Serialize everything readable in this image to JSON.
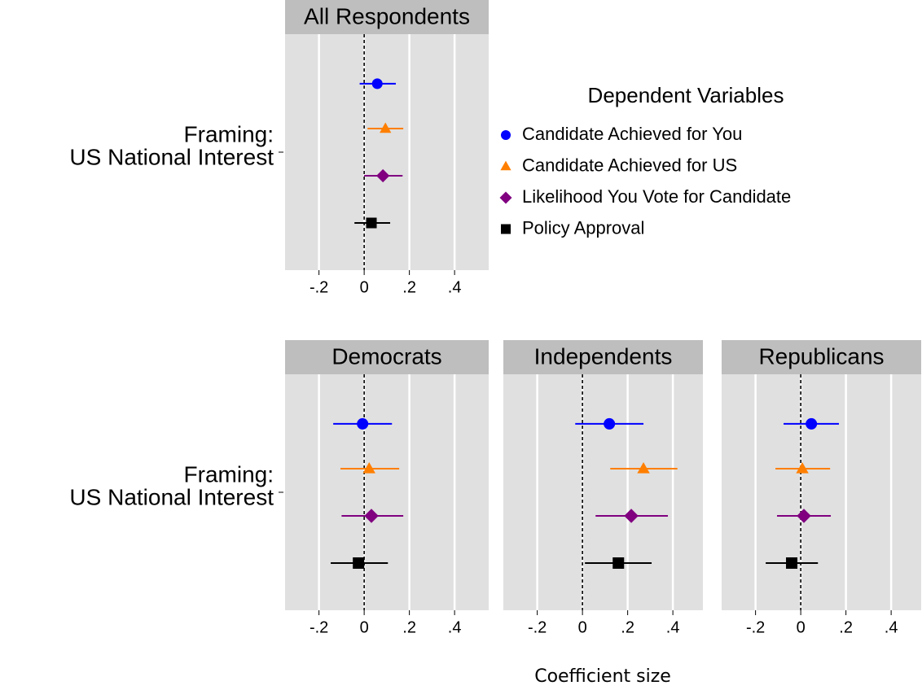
{
  "chart_data": [
    {
      "type": "coefplot",
      "title": "All Respondents",
      "ylabel": [
        "Framing:",
        "US National Interest"
      ],
      "xlim": [
        -0.35,
        0.55
      ],
      "xticks": [
        {
          "value": -0.2,
          "label": "-.2"
        },
        0,
        {
          "value": 0.2,
          "label": ".2"
        },
        {
          "value": 0.4,
          "label": ".4"
        }
      ],
      "xline": 0,
      "grid": true,
      "series": [
        {
          "name": "Candidate Achieved for You",
          "color": "#0000ff",
          "marker": "circle",
          "values": [
            0.058
          ],
          "ci_low": [
            -0.02
          ],
          "ci_high": [
            0.14
          ]
        },
        {
          "name": "Candidate Achieved for US",
          "color": "#ff7f00",
          "marker": "triangle",
          "values": [
            0.094
          ],
          "ci_low": [
            0.015
          ],
          "ci_high": [
            0.173
          ]
        },
        {
          "name": "Likelihood You Vote for Candidate",
          "color": "#800080",
          "marker": "diamond",
          "values": [
            0.083
          ],
          "ci_low": [
            0.0
          ],
          "ci_high": [
            0.17
          ]
        },
        {
          "name": "Policy Approval",
          "color": "#000000",
          "marker": "square",
          "values": [
            0.032
          ],
          "ci_low": [
            -0.043
          ],
          "ci_high": [
            0.115
          ]
        }
      ],
      "legend_title": "Dependent Variables"
    },
    {
      "type": "coefplot",
      "title": "Democrats",
      "ylabel": [
        "Framing:",
        "US National Interest"
      ],
      "xlim": [
        -0.35,
        0.55
      ],
      "xticks": [
        {
          "value": -0.2,
          "label": "-.2"
        },
        0,
        {
          "value": 0.2,
          "label": ".2"
        },
        {
          "value": 0.4,
          "label": ".4"
        }
      ],
      "xline": 0,
      "grid": true,
      "series": [
        {
          "name": "Candidate Achieved for You",
          "color": "#0000ff",
          "marker": "circle",
          "values": [
            -0.007
          ],
          "ci_low": [
            -0.137
          ],
          "ci_high": [
            0.123
          ]
        },
        {
          "name": "Candidate Achieved for US",
          "color": "#ff7f00",
          "marker": "triangle",
          "values": [
            0.022
          ],
          "ci_low": [
            -0.105
          ],
          "ci_high": [
            0.155
          ]
        },
        {
          "name": "Likelihood You Vote for Candidate",
          "color": "#800080",
          "marker": "diamond",
          "values": [
            0.032
          ],
          "ci_low": [
            -0.1
          ],
          "ci_high": [
            0.173
          ]
        },
        {
          "name": "Policy Approval",
          "color": "#000000",
          "marker": "square",
          "values": [
            -0.025
          ],
          "ci_low": [
            -0.148
          ],
          "ci_high": [
            0.105
          ]
        }
      ]
    },
    {
      "type": "coefplot",
      "title": "Independents",
      "xlim": [
        -0.35,
        0.55
      ],
      "xticks": [
        {
          "value": -0.2,
          "label": "-.2"
        },
        0,
        {
          "value": 0.2,
          "label": ".2"
        },
        {
          "value": 0.4,
          "label": ".4"
        }
      ],
      "xline": 0,
      "grid": true,
      "series": [
        {
          "name": "Candidate Achieved for You",
          "color": "#0000ff",
          "marker": "circle",
          "values": [
            0.119
          ],
          "ci_low": [
            -0.032
          ],
          "ci_high": [
            0.27
          ]
        },
        {
          "name": "Candidate Achieved for US",
          "color": "#ff7f00",
          "marker": "triangle",
          "values": [
            0.27
          ],
          "ci_low": [
            0.123
          ],
          "ci_high": [
            0.42
          ]
        },
        {
          "name": "Likelihood You Vote for Candidate",
          "color": "#800080",
          "marker": "diamond",
          "values": [
            0.216
          ],
          "ci_low": [
            0.058
          ],
          "ci_high": [
            0.378
          ]
        },
        {
          "name": "Policy Approval",
          "color": "#000000",
          "marker": "square",
          "values": [
            0.159
          ],
          "ci_low": [
            0.011
          ],
          "ci_high": [
            0.306
          ]
        }
      ],
      "xlabel": "Coefficient size"
    },
    {
      "type": "coefplot",
      "title": "Republicans",
      "xlim": [
        -0.35,
        0.55
      ],
      "xticks": [
        {
          "value": -0.2,
          "label": "-.2"
        },
        0,
        {
          "value": 0.2,
          "label": ".2"
        },
        {
          "value": 0.4,
          "label": ".4"
        }
      ],
      "xline": 0,
      "grid": true,
      "series": [
        {
          "name": "Candidate Achieved for You",
          "color": "#0000ff",
          "marker": "circle",
          "values": [
            0.047
          ],
          "ci_low": [
            -0.076
          ],
          "ci_high": [
            0.169
          ]
        },
        {
          "name": "Candidate Achieved for US",
          "color": "#ff7f00",
          "marker": "triangle",
          "values": [
            0.007
          ],
          "ci_low": [
            -0.112
          ],
          "ci_high": [
            0.13
          ]
        },
        {
          "name": "Likelihood You Vote for Candidate",
          "color": "#800080",
          "marker": "diamond",
          "values": [
            0.014
          ],
          "ci_low": [
            -0.105
          ],
          "ci_high": [
            0.133
          ]
        },
        {
          "name": "Policy Approval",
          "color": "#000000",
          "marker": "square",
          "values": [
            -0.04
          ],
          "ci_low": [
            -0.155
          ],
          "ci_high": [
            0.076
          ]
        }
      ]
    }
  ]
}
